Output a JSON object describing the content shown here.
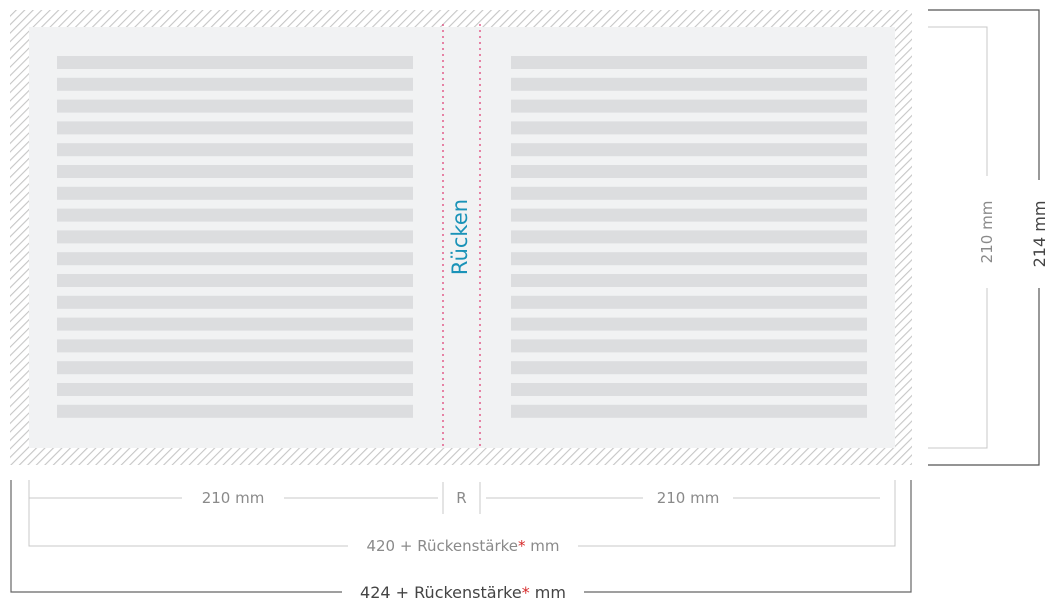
{
  "spine_label": "Rücken",
  "labels": {
    "left_page_width": "210 mm",
    "spine": "R",
    "right_page_width": "210 mm",
    "total_trim_prefix": "420 + Rückenstärke",
    "total_bleed_prefix": "424 + Rückenstärke",
    "asterisk": "*",
    "unit": " mm",
    "height_trim": "210 mm",
    "height_bleed": "214 mm"
  },
  "colors": {
    "spine_text": "#1a93b8",
    "fold_line": "#e0457b",
    "asterisk": "#d62b2b",
    "page_fill": "#f1f2f3",
    "text_bar": "#dcdddf",
    "bleed_hatch": "#c9c9c9"
  }
}
